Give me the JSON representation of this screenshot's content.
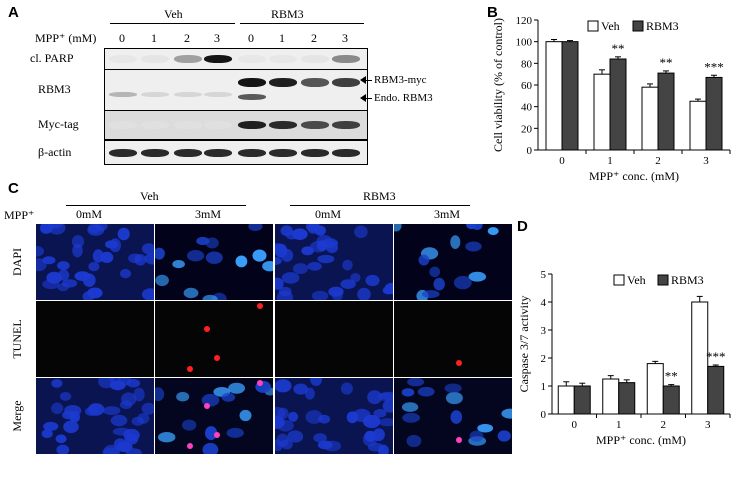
{
  "panels": {
    "A": {
      "label": "A",
      "group_veh": "Veh",
      "group_rbm3": "RBM3",
      "mpp_label": "MPP⁺ (mM)",
      "lanes": [
        "0",
        "1",
        "2",
        "3",
        "0",
        "1",
        "2",
        "3"
      ],
      "rows": [
        {
          "name": "cl. PARP",
          "intensity": [
            0.02,
            0.03,
            0.35,
            1.0,
            0.02,
            0.02,
            0.03,
            0.45
          ]
        },
        {
          "name": "RBM3",
          "intensity": [
            0.25,
            0.1,
            0.1,
            0.1,
            1.0,
            0.95,
            0.7,
            0.8
          ]
        },
        {
          "name": "Myc-tag",
          "intensity": [
            0.05,
            0.05,
            0.05,
            0.05,
            0.95,
            0.9,
            0.75,
            0.8
          ]
        },
        {
          "name": "β-actin",
          "intensity": [
            0.9,
            0.9,
            0.9,
            0.9,
            0.9,
            0.9,
            0.9,
            0.9
          ]
        }
      ],
      "annot_rbm3_myc": "RBM3-myc",
      "annot_endo": "Endo. RBM3"
    },
    "B": {
      "label": "B"
    },
    "C": {
      "label": "C",
      "group_veh": "Veh",
      "group_rbm3": "RBM3",
      "mpp_label": "MPP⁺",
      "col_labels": [
        "0mM",
        "3mM",
        "0mM",
        "3mM"
      ],
      "row_labels": [
        "DAPI",
        "TUNEL",
        "Merge"
      ]
    },
    "D": {
      "label": "D"
    }
  },
  "chart_data": [
    {
      "type": "bar",
      "panel": "B",
      "categories": [
        "0",
        "1",
        "2",
        "3"
      ],
      "series": [
        {
          "name": "Veh",
          "values": [
            100,
            70,
            58,
            45
          ],
          "errors": [
            2,
            4,
            3,
            2
          ],
          "color": "#ffffff"
        },
        {
          "name": "RBM3",
          "values": [
            100,
            84,
            71,
            67
          ],
          "errors": [
            1,
            2,
            2,
            2
          ],
          "color": "#444444"
        }
      ],
      "annotations": [
        "",
        "**",
        "**",
        "***"
      ],
      "xlabel": "MPP⁺ conc. (mM)",
      "ylabel": "Cell viability (% of control)",
      "ylim": [
        0,
        120
      ],
      "yticks": [
        0,
        20,
        40,
        60,
        80,
        100,
        120
      ],
      "legend": "top-right"
    },
    {
      "type": "bar",
      "panel": "D",
      "categories": [
        "0",
        "1",
        "2",
        "3"
      ],
      "series": [
        {
          "name": "Veh",
          "values": [
            1.0,
            1.25,
            1.8,
            4.0
          ],
          "errors": [
            0.15,
            0.12,
            0.08,
            0.2
          ],
          "color": "#ffffff"
        },
        {
          "name": "RBM3",
          "values": [
            1.0,
            1.12,
            1.0,
            1.7
          ],
          "errors": [
            0.1,
            0.1,
            0.05,
            0.05
          ],
          "color": "#444444"
        }
      ],
      "annotations": [
        "",
        "",
        "**",
        "***"
      ],
      "xlabel": "MPP⁺ conc. (mM)",
      "ylabel": "Caspase 3/7 activity",
      "ylim": [
        0,
        5
      ],
      "yticks": [
        0,
        1,
        2,
        3,
        4,
        5
      ],
      "legend": "top-right"
    }
  ]
}
